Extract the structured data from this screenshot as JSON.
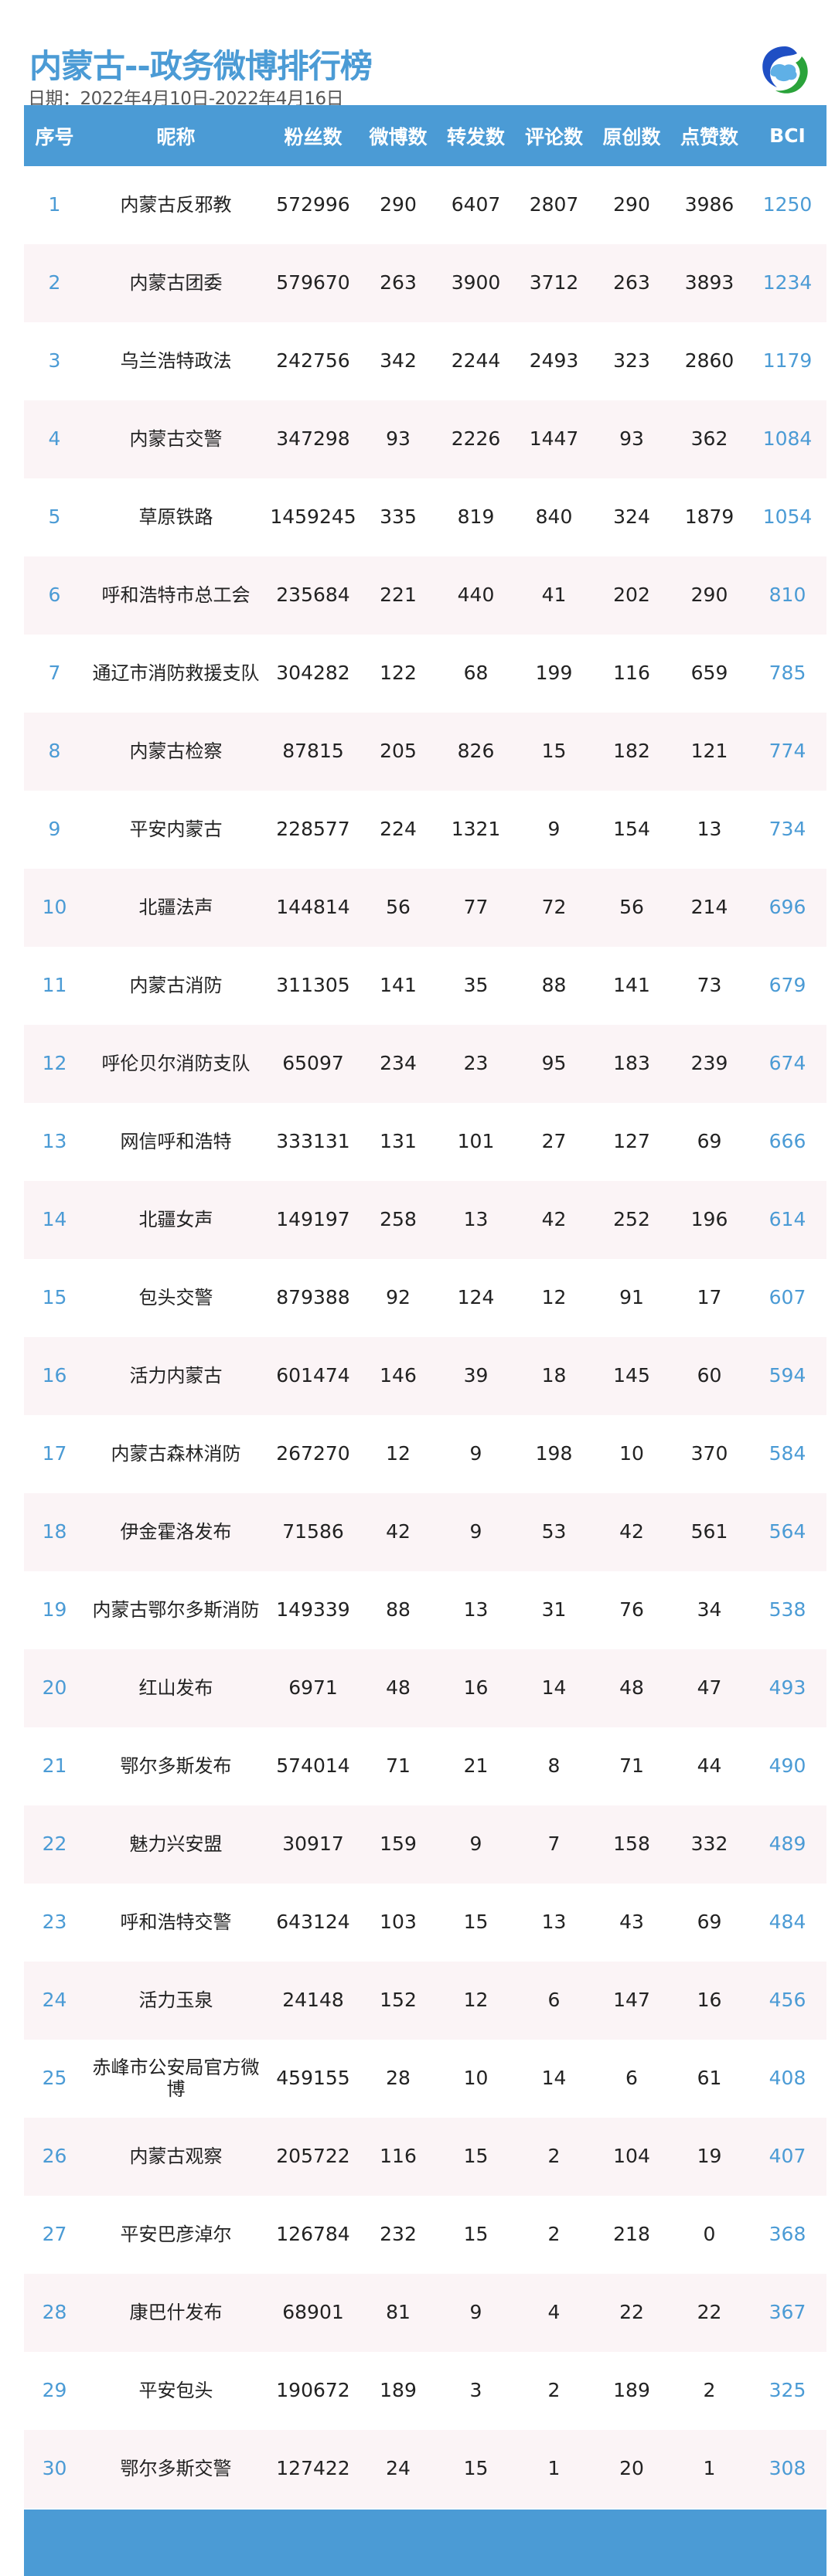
{
  "header": {
    "title": "内蒙古--政务微博排行榜",
    "date": "日期：2022年4月10日-2022年4月16日",
    "logo_icon": "cloud-logo-icon"
  },
  "colors": {
    "accent": "#4b9bd5",
    "row_alt": "#fbf4f6"
  },
  "table": {
    "columns": [
      "序号",
      "昵称",
      "粉丝数",
      "微博数",
      "转发数",
      "评论数",
      "原创数",
      "点赞数",
      "BCI"
    ],
    "rows": [
      [
        "1",
        "内蒙古反邪教",
        "572996",
        "290",
        "6407",
        "2807",
        "290",
        "3986",
        "1250"
      ],
      [
        "2",
        "内蒙古团委",
        "579670",
        "263",
        "3900",
        "3712",
        "263",
        "3893",
        "1234"
      ],
      [
        "3",
        "乌兰浩特政法",
        "242756",
        "342",
        "2244",
        "2493",
        "323",
        "2860",
        "1179"
      ],
      [
        "4",
        "内蒙古交警",
        "347298",
        "93",
        "2226",
        "1447",
        "93",
        "362",
        "1084"
      ],
      [
        "5",
        "草原铁路",
        "1459245",
        "335",
        "819",
        "840",
        "324",
        "1879",
        "1054"
      ],
      [
        "6",
        "呼和浩特市总工会",
        "235684",
        "221",
        "440",
        "41",
        "202",
        "290",
        "810"
      ],
      [
        "7",
        "通辽市消防救援支队",
        "304282",
        "122",
        "68",
        "199",
        "116",
        "659",
        "785"
      ],
      [
        "8",
        "内蒙古检察",
        "87815",
        "205",
        "826",
        "15",
        "182",
        "121",
        "774"
      ],
      [
        "9",
        "平安内蒙古",
        "228577",
        "224",
        "1321",
        "9",
        "154",
        "13",
        "734"
      ],
      [
        "10",
        "北疆法声",
        "144814",
        "56",
        "77",
        "72",
        "56",
        "214",
        "696"
      ],
      [
        "11",
        "内蒙古消防",
        "311305",
        "141",
        "35",
        "88",
        "141",
        "73",
        "679"
      ],
      [
        "12",
        "呼伦贝尔消防支队",
        "65097",
        "234",
        "23",
        "95",
        "183",
        "239",
        "674"
      ],
      [
        "13",
        "网信呼和浩特",
        "333131",
        "131",
        "101",
        "27",
        "127",
        "69",
        "666"
      ],
      [
        "14",
        "北疆女声",
        "149197",
        "258",
        "13",
        "42",
        "252",
        "196",
        "614"
      ],
      [
        "15",
        "包头交警",
        "879388",
        "92",
        "124",
        "12",
        "91",
        "17",
        "607"
      ],
      [
        "16",
        "活力内蒙古",
        "601474",
        "146",
        "39",
        "18",
        "145",
        "60",
        "594"
      ],
      [
        "17",
        "内蒙古森林消防",
        "267270",
        "12",
        "9",
        "198",
        "10",
        "370",
        "584"
      ],
      [
        "18",
        "伊金霍洛发布",
        "71586",
        "42",
        "9",
        "53",
        "42",
        "561",
        "564"
      ],
      [
        "19",
        "内蒙古鄂尔多斯消防",
        "149339",
        "88",
        "13",
        "31",
        "76",
        "34",
        "538"
      ],
      [
        "20",
        "红山发布",
        "6971",
        "48",
        "16",
        "14",
        "48",
        "47",
        "493"
      ],
      [
        "21",
        "鄂尔多斯发布",
        "574014",
        "71",
        "21",
        "8",
        "71",
        "44",
        "490"
      ],
      [
        "22",
        "魅力兴安盟",
        "30917",
        "159",
        "9",
        "7",
        "158",
        "332",
        "489"
      ],
      [
        "23",
        "呼和浩特交警",
        "643124",
        "103",
        "15",
        "13",
        "43",
        "69",
        "484"
      ],
      [
        "24",
        "活力玉泉",
        "24148",
        "152",
        "12",
        "6",
        "147",
        "16",
        "456"
      ],
      [
        "25",
        "赤峰市公安局官方微博",
        "459155",
        "28",
        "10",
        "14",
        "6",
        "61",
        "408"
      ],
      [
        "26",
        "内蒙古观察",
        "205722",
        "116",
        "15",
        "2",
        "104",
        "19",
        "407"
      ],
      [
        "27",
        "平安巴彦淖尔",
        "126784",
        "232",
        "15",
        "2",
        "218",
        "0",
        "368"
      ],
      [
        "28",
        "康巴什发布",
        "68901",
        "81",
        "9",
        "4",
        "22",
        "22",
        "367"
      ],
      [
        "29",
        "平安包头",
        "190672",
        "189",
        "3",
        "2",
        "189",
        "2",
        "325"
      ],
      [
        "30",
        "鄂尔多斯交警",
        "127422",
        "24",
        "15",
        "1",
        "20",
        "1",
        "308"
      ]
    ]
  }
}
